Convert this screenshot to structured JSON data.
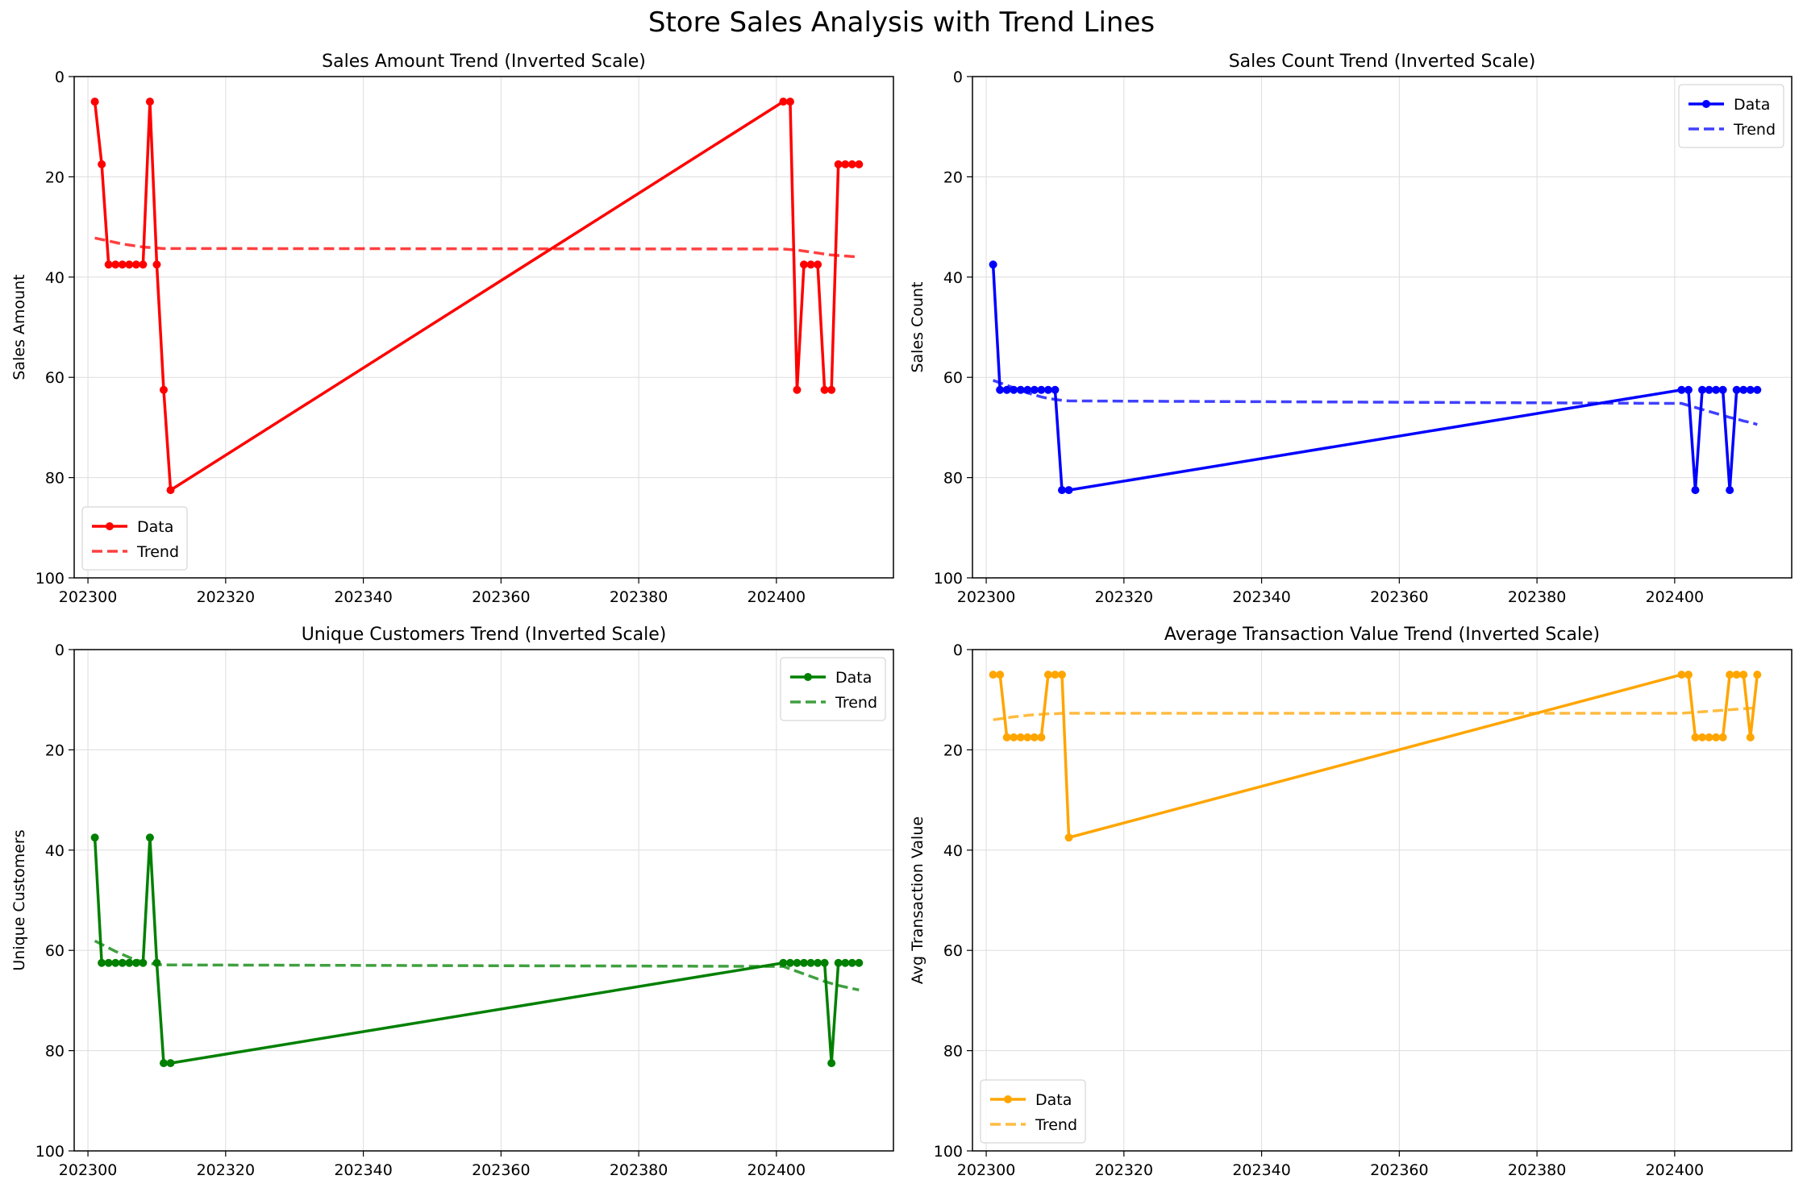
{
  "figure": {
    "title": "Store Sales Analysis with Trend Lines"
  },
  "chart_data": [
    {
      "type": "line",
      "title": "Sales Amount Trend (Inverted Scale)",
      "xlabel": "",
      "ylabel": "Sales Amount",
      "xlim": [
        202298,
        202417
      ],
      "ylim": [
        100,
        0
      ],
      "y_inverted": true,
      "xticks": [
        202300,
        202320,
        202340,
        202360,
        202380,
        202400
      ],
      "yticks": [
        0,
        20,
        40,
        60,
        80,
        100
      ],
      "grid": true,
      "legend_position": "bottom-left",
      "color": "#ff0000",
      "x": [
        202301,
        202302,
        202303,
        202304,
        202305,
        202306,
        202307,
        202308,
        202309,
        202310,
        202311,
        202312,
        202401,
        202402,
        202403,
        202404,
        202405,
        202406,
        202407,
        202408,
        202409,
        202410,
        202411,
        202412
      ],
      "series": [
        {
          "name": "Data",
          "style": "solid-marker",
          "values": [
            5,
            17.5,
            37.5,
            37.5,
            37.5,
            37.5,
            37.5,
            37.5,
            5,
            37.5,
            62.5,
            82.5,
            5,
            5,
            62.5,
            37.5,
            37.5,
            37.5,
            62.5,
            62.5,
            17.5,
            17.5,
            17.5,
            17.5
          ]
        },
        {
          "name": "Trend",
          "style": "dashed",
          "values": [
            32.2,
            32.5,
            32.8,
            33.1,
            33.4,
            33.6,
            33.8,
            34,
            34.1,
            34.2,
            34.3,
            34.3,
            34.4,
            34.5,
            34.6,
            34.8,
            35,
            35.2,
            35.4,
            35.6,
            35.7,
            35.8,
            35.9,
            36
          ]
        }
      ]
    },
    {
      "type": "line",
      "title": "Sales Count Trend (Inverted Scale)",
      "xlabel": "",
      "ylabel": "Sales Count",
      "xlim": [
        202298,
        202417
      ],
      "ylim": [
        100,
        0
      ],
      "y_inverted": true,
      "xticks": [
        202300,
        202320,
        202340,
        202360,
        202380,
        202400
      ],
      "yticks": [
        0,
        20,
        40,
        60,
        80,
        100
      ],
      "grid": true,
      "legend_position": "top-right",
      "color": "#0000ff",
      "x": [
        202301,
        202302,
        202303,
        202304,
        202305,
        202306,
        202307,
        202308,
        202309,
        202310,
        202311,
        202312,
        202401,
        202402,
        202403,
        202404,
        202405,
        202406,
        202407,
        202408,
        202409,
        202410,
        202411,
        202412
      ],
      "series": [
        {
          "name": "Data",
          "style": "solid-marker",
          "values": [
            37.5,
            62.5,
            62.5,
            62.5,
            62.5,
            62.5,
            62.5,
            62.5,
            62.5,
            62.5,
            82.5,
            82.5,
            62.5,
            62.5,
            82.5,
            62.5,
            62.5,
            62.5,
            62.5,
            82.5,
            62.5,
            62.5,
            62.5,
            62.5
          ]
        },
        {
          "name": "Trend",
          "style": "dashed",
          "values": [
            60.6,
            61.1,
            61.6,
            62.1,
            62.6,
            63.1,
            63.5,
            63.9,
            64.2,
            64.4,
            64.6,
            64.7,
            65.2,
            65.6,
            66,
            66.4,
            66.8,
            67.2,
            67.6,
            68,
            68.3,
            68.7,
            69,
            69.4
          ]
        }
      ]
    },
    {
      "type": "line",
      "title": "Unique Customers Trend (Inverted Scale)",
      "xlabel": "",
      "ylabel": "Unique Customers",
      "xlim": [
        202298,
        202417
      ],
      "ylim": [
        100,
        0
      ],
      "y_inverted": true,
      "xticks": [
        202300,
        202320,
        202340,
        202360,
        202380,
        202400
      ],
      "yticks": [
        0,
        20,
        40,
        60,
        80,
        100
      ],
      "grid": true,
      "legend_position": "top-right",
      "color": "#008000",
      "x": [
        202301,
        202302,
        202303,
        202304,
        202305,
        202306,
        202307,
        202308,
        202309,
        202310,
        202311,
        202312,
        202401,
        202402,
        202403,
        202404,
        202405,
        202406,
        202407,
        202408,
        202409,
        202410,
        202411,
        202412
      ],
      "series": [
        {
          "name": "Data",
          "style": "solid-marker",
          "values": [
            37.5,
            62.5,
            62.5,
            62.5,
            62.5,
            62.5,
            62.5,
            62.5,
            37.5,
            62.5,
            82.5,
            82.5,
            62.5,
            62.5,
            62.5,
            62.5,
            62.5,
            62.5,
            62.5,
            82.5,
            62.5,
            62.5,
            62.5,
            62.5
          ]
        },
        {
          "name": "Trend",
          "style": "dashed",
          "values": [
            58.1,
            58.8,
            59.5,
            60.2,
            60.8,
            61.4,
            61.9,
            62.3,
            62.6,
            62.8,
            62.9,
            62.9,
            63.2,
            63.7,
            64.2,
            64.7,
            65.2,
            65.7,
            66.2,
            66.6,
            67,
            67.3,
            67.6,
            67.9
          ]
        }
      ]
    },
    {
      "type": "line",
      "title": "Average Transaction Value Trend (Inverted Scale)",
      "xlabel": "",
      "ylabel": "Avg Transaction Value",
      "xlim": [
        202298,
        202417
      ],
      "ylim": [
        100,
        0
      ],
      "y_inverted": true,
      "xticks": [
        202300,
        202320,
        202340,
        202360,
        202380,
        202400
      ],
      "yticks": [
        0,
        20,
        40,
        60,
        80,
        100
      ],
      "grid": true,
      "legend_position": "bottom-left",
      "color": "#ffa500",
      "x": [
        202301,
        202302,
        202303,
        202304,
        202305,
        202306,
        202307,
        202308,
        202309,
        202310,
        202311,
        202312,
        202401,
        202402,
        202403,
        202404,
        202405,
        202406,
        202407,
        202408,
        202409,
        202410,
        202411,
        202412
      ],
      "series": [
        {
          "name": "Data",
          "style": "solid-marker",
          "values": [
            5,
            5,
            17.5,
            17.5,
            17.5,
            17.5,
            17.5,
            17.5,
            5,
            5,
            5,
            37.5,
            5,
            5,
            17.5,
            17.5,
            17.5,
            17.5,
            17.5,
            5,
            5,
            5,
            17.5,
            5
          ]
        },
        {
          "name": "Trend",
          "style": "dashed",
          "values": [
            14,
            13.8,
            13.6,
            13.4,
            13.3,
            13.1,
            13,
            12.9,
            12.8,
            12.8,
            12.7,
            12.7,
            12.7,
            12.6,
            12.5,
            12.4,
            12.3,
            12.2,
            12.1,
            12,
            11.9,
            11.8,
            11.7,
            11.6
          ]
        }
      ]
    }
  ]
}
